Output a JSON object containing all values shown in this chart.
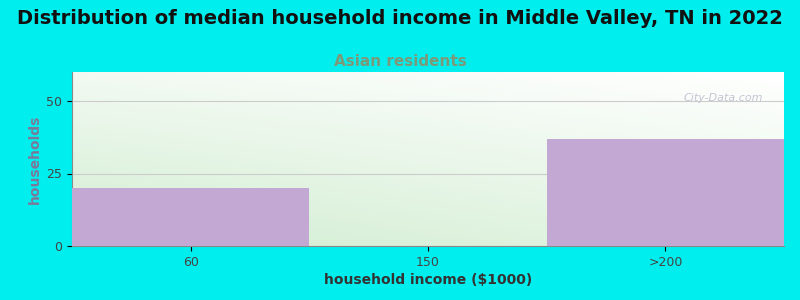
{
  "title": "Distribution of median household income in Middle Valley, TN in 2022",
  "subtitle": "Asian residents",
  "xlabel": "household income ($1000)",
  "ylabel": "households",
  "categories": [
    "60",
    "150",
    ">200"
  ],
  "values": [
    20,
    0,
    37
  ],
  "bar_color": "#C4A8D4",
  "background_color": "#00EEEE",
  "plot_bg_color_top_right": "#FFFFFF",
  "plot_bg_color_bottom_left": "#CCEACC",
  "ylim": [
    0,
    60
  ],
  "yticks": [
    0,
    25,
    50
  ],
  "title_fontsize": 14,
  "subtitle_fontsize": 11,
  "subtitle_color": "#7A9A7A",
  "ylabel_color": "#7A7A7A",
  "axis_label_fontsize": 10,
  "tick_fontsize": 9,
  "watermark": "City-Data.com"
}
